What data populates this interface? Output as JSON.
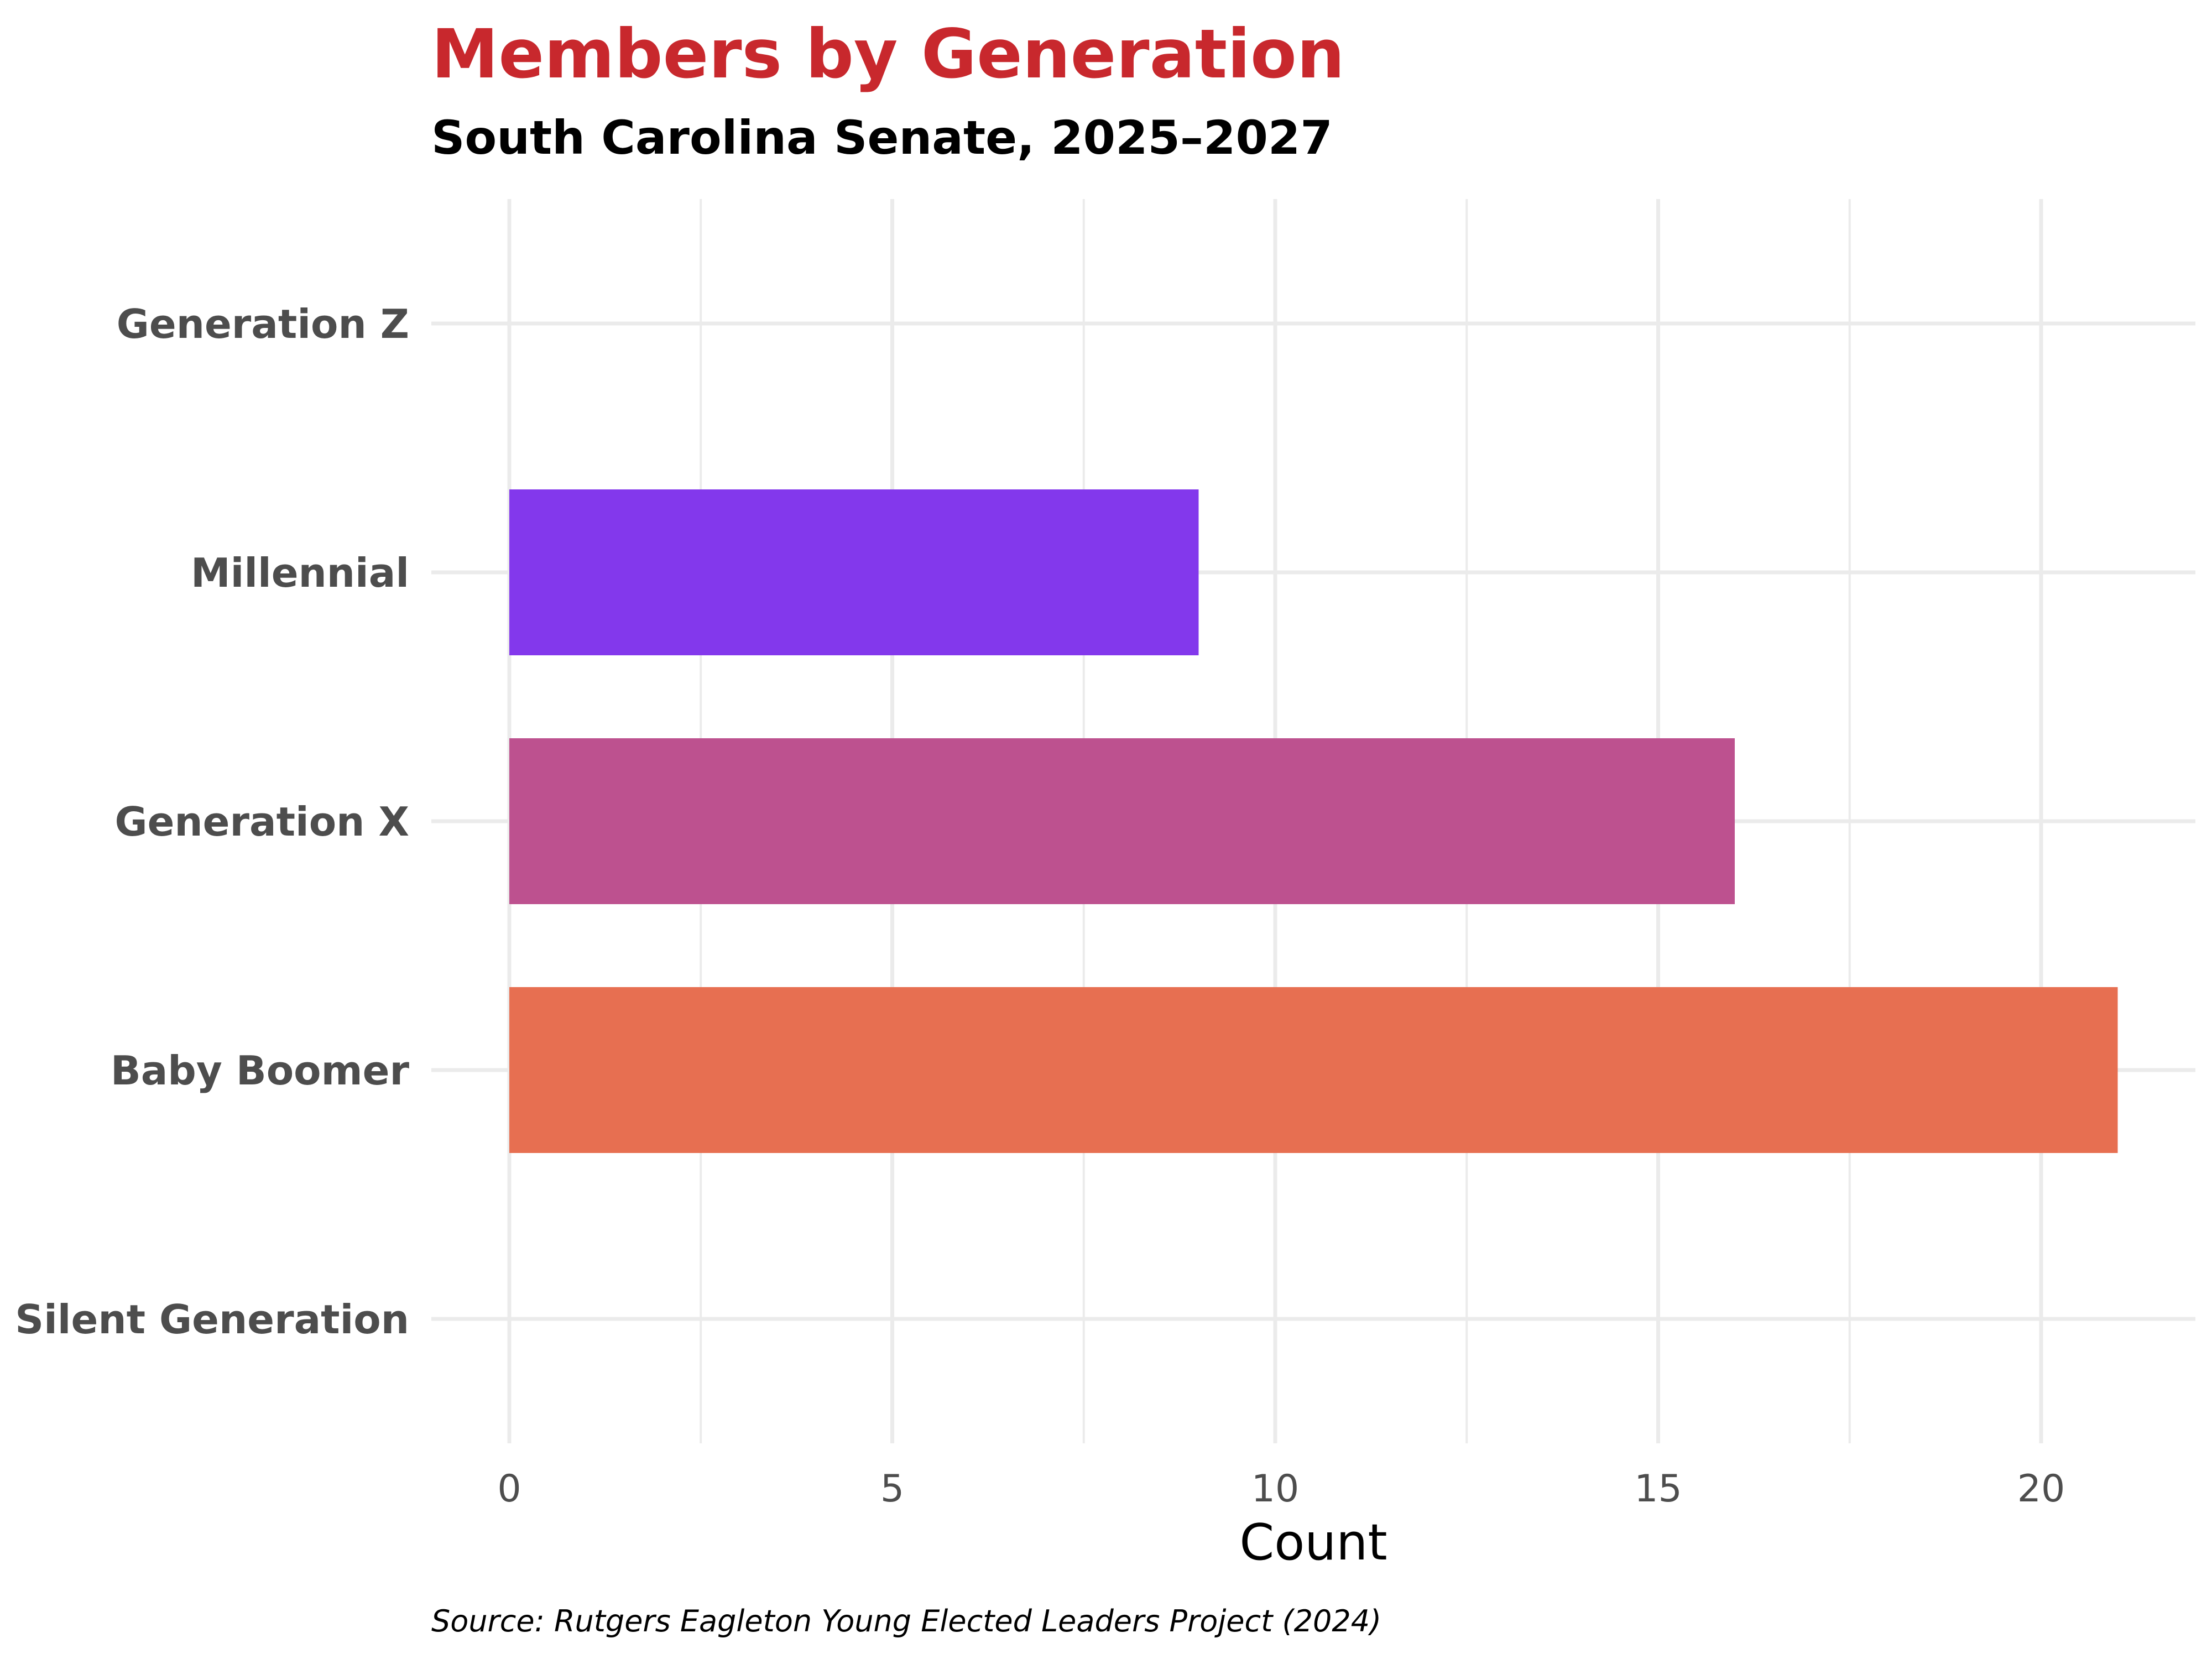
{
  "chart_data": {
    "type": "bar",
    "orientation": "horizontal",
    "title": "Members by Generation",
    "subtitle": "South Carolina Senate, 2025–2027",
    "xlabel": "Count",
    "ylabel": "",
    "caption": "Source: Rutgers Eagleton Young Elected Leaders Project (2024)",
    "categories": [
      "Silent Generation",
      "Baby Boomer",
      "Generation X",
      "Millennial",
      "Generation Z"
    ],
    "values": [
      0,
      21,
      16,
      9,
      0
    ],
    "colors": [
      "#e76f51",
      "#e76f51",
      "#bd518f",
      "#8338ec",
      "#8338ec"
    ],
    "xlim": [
      0,
      21.5
    ],
    "xticks": [
      0,
      5,
      10,
      15,
      20
    ],
    "grid": true,
    "legend": "none"
  }
}
